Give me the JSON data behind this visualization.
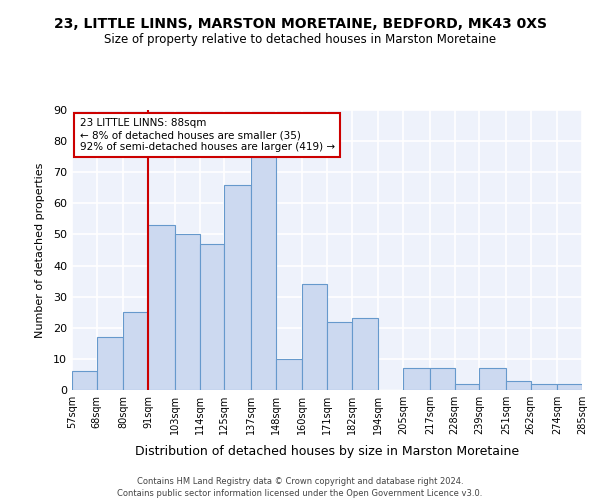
{
  "title": "23, LITTLE LINNS, MARSTON MORETAINE, BEDFORD, MK43 0XS",
  "subtitle": "Size of property relative to detached houses in Marston Moretaine",
  "xlabel": "Distribution of detached houses by size in Marston Moretaine",
  "ylabel": "Number of detached properties",
  "bins": [
    57,
    68,
    80,
    91,
    103,
    114,
    125,
    137,
    148,
    160,
    171,
    182,
    194,
    205,
    217,
    228,
    239,
    251,
    262,
    274,
    285
  ],
  "counts": [
    6,
    17,
    25,
    53,
    50,
    47,
    66,
    75,
    10,
    34,
    22,
    23,
    0,
    7,
    7,
    2,
    7,
    3,
    2,
    2
  ],
  "bar_color": "#ccd9f0",
  "bar_edge_color": "#6699cc",
  "background_color": "#eef2fb",
  "grid_color": "#ffffff",
  "vline_x": 91,
  "vline_color": "#cc0000",
  "ylim": [
    0,
    90
  ],
  "yticks": [
    0,
    10,
    20,
    30,
    40,
    50,
    60,
    70,
    80,
    90
  ],
  "annotation_title": "23 LITTLE LINNS: 88sqm",
  "annotation_line1": "← 8% of detached houses are smaller (35)",
  "annotation_line2": "92% of semi-detached houses are larger (419) →",
  "annotation_box_color": "#cc0000",
  "footer_line1": "Contains HM Land Registry data © Crown copyright and database right 2024.",
  "footer_line2": "Contains public sector information licensed under the Open Government Licence v3.0.",
  "tick_labels": [
    "57sqm",
    "68sqm",
    "80sqm",
    "91sqm",
    "103sqm",
    "114sqm",
    "125sqm",
    "137sqm",
    "148sqm",
    "160sqm",
    "171sqm",
    "182sqm",
    "194sqm",
    "205sqm",
    "217sqm",
    "228sqm",
    "239sqm",
    "251sqm",
    "262sqm",
    "274sqm",
    "285sqm"
  ]
}
